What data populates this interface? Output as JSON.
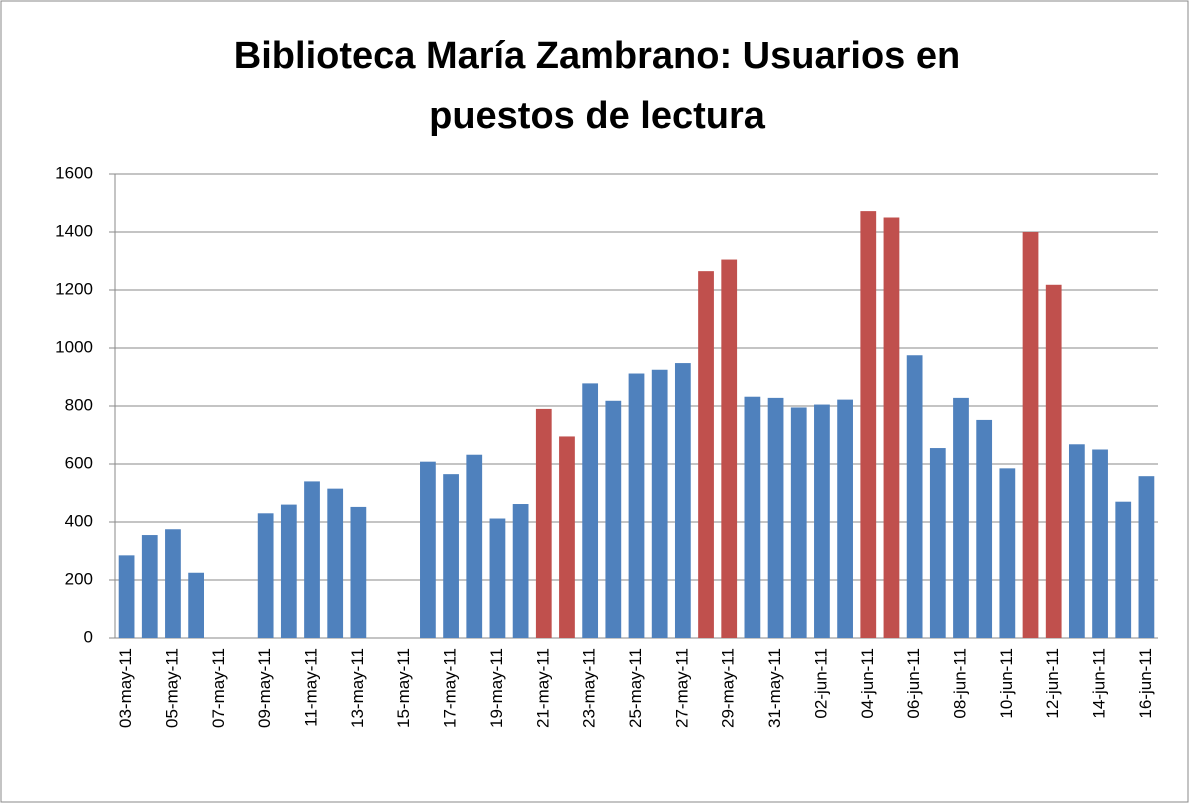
{
  "chart_data": {
    "type": "bar",
    "title": [
      "Biblioteca María Zambrano: Usuarios en",
      "puestos de lectura"
    ],
    "categories": [
      "03-may-11",
      null,
      "05-may-11",
      null,
      "07-may-11",
      null,
      "09-may-11",
      null,
      "11-may-11",
      null,
      "13-may-11",
      null,
      "15-may-11",
      null,
      "17-may-11",
      null,
      "19-may-11",
      null,
      "21-may-11",
      null,
      "23-may-11",
      null,
      "25-may-11",
      null,
      "27-may-11",
      null,
      "29-may-11",
      null,
      "31-may-11",
      null,
      "02-jun-11",
      null,
      "04-jun-11",
      null,
      "06-jun-11",
      null,
      "08-jun-11",
      null,
      "10-jun-11",
      null,
      "12-jun-11",
      null,
      "14-jun-11",
      null,
      "16-jun-11"
    ],
    "values": [
      285,
      355,
      375,
      225,
      null,
      null,
      430,
      460,
      540,
      515,
      452,
      null,
      null,
      608,
      565,
      632,
      412,
      462,
      790,
      695,
      878,
      818,
      912,
      925,
      948,
      1265,
      1305,
      832,
      828,
      795,
      805,
      822,
      1472,
      1450,
      975,
      655,
      828,
      752,
      585,
      1400,
      1218,
      668,
      650,
      470,
      558
    ],
    "colors": [
      "#4f81bd",
      "#4f81bd",
      "#4f81bd",
      "#4f81bd",
      "#4f81bd",
      "#4f81bd",
      "#4f81bd",
      "#4f81bd",
      "#4f81bd",
      "#4f81bd",
      "#4f81bd",
      "#4f81bd",
      "#4f81bd",
      "#4f81bd",
      "#4f81bd",
      "#4f81bd",
      "#4f81bd",
      "#4f81bd",
      "#c0504d",
      "#c0504d",
      "#4f81bd",
      "#4f81bd",
      "#4f81bd",
      "#4f81bd",
      "#4f81bd",
      "#c0504d",
      "#c0504d",
      "#4f81bd",
      "#4f81bd",
      "#4f81bd",
      "#4f81bd",
      "#4f81bd",
      "#c0504d",
      "#c0504d",
      "#4f81bd",
      "#4f81bd",
      "#4f81bd",
      "#4f81bd",
      "#4f81bd",
      "#c0504d",
      "#c0504d",
      "#4f81bd",
      "#4f81bd",
      "#4f81bd",
      "#4f81bd"
    ],
    "ylim": [
      0,
      1600
    ],
    "yticks": [
      0,
      200,
      400,
      600,
      800,
      1000,
      1200,
      1400,
      1600
    ],
    "grid": true
  }
}
